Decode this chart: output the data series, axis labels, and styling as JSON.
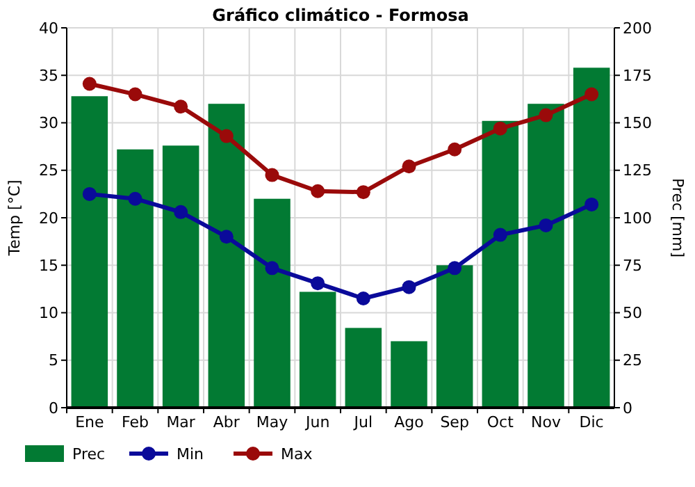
{
  "chart_data": {
    "type": "bar",
    "title": "Gráfico climático - Formosa",
    "categories": [
      "Ene",
      "Feb",
      "Mar",
      "Abr",
      "May",
      "Jun",
      "Jul",
      "Ago",
      "Sep",
      "Oct",
      "Nov",
      "Dic"
    ],
    "series": [
      {
        "name": "Prec",
        "axis": "y2",
        "color": "#027a33",
        "values": [
          164,
          136,
          138,
          160,
          110,
          61,
          42,
          35,
          75,
          151,
          160,
          179
        ]
      },
      {
        "name": "Min",
        "type": "line",
        "color": "#0a0a9a",
        "values": [
          22.5,
          22,
          20.6,
          18,
          14.7,
          13.1,
          11.5,
          12.7,
          14.7,
          18.2,
          19.2,
          21.4
        ]
      },
      {
        "name": "Max",
        "type": "line",
        "color": "#9a0a0a",
        "values": [
          34.1,
          33,
          31.7,
          28.6,
          24.5,
          22.8,
          22.7,
          25.4,
          27.2,
          29.4,
          30.8,
          33
        ]
      }
    ],
    "ylabel": "Temp [°C]",
    "y2label": "Prec [mm]",
    "ylim": [
      0,
      40
    ],
    "yticks": [
      0,
      5,
      10,
      15,
      20,
      25,
      30,
      35,
      40
    ],
    "y2lim": [
      0,
      200
    ],
    "y2ticks": [
      0,
      25,
      50,
      75,
      100,
      125,
      150,
      175,
      200
    ],
    "grid": true,
    "legend": "bottom",
    "marker": "circle"
  }
}
